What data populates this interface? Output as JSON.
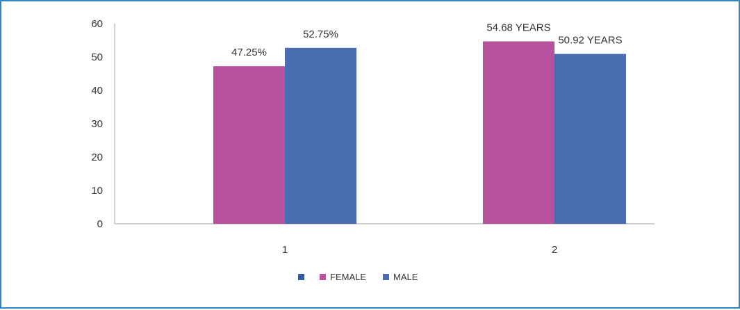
{
  "chart_data": {
    "type": "bar",
    "categories": [
      "1",
      "2"
    ],
    "series": [
      {
        "name": "FEMALE",
        "color": "#b5519d",
        "values": [
          47.25,
          54.68
        ],
        "labels": [
          "47.25%",
          "54.68 YEARS"
        ]
      },
      {
        "name": "MALE",
        "color": "#4a6db2",
        "values": [
          52.75,
          50.92
        ],
        "labels": [
          "52.75%",
          "50.92 YEARS"
        ]
      }
    ],
    "legend_empty_marker_color": "#2f5fa8",
    "title": "",
    "xlabel": "",
    "ylabel": "",
    "ylim": [
      0,
      60
    ],
    "yticks": [
      0,
      10,
      20,
      30,
      40,
      50,
      60
    ],
    "grid": false,
    "legend_position": "bottom"
  },
  "frame_color": "#2f86c6"
}
